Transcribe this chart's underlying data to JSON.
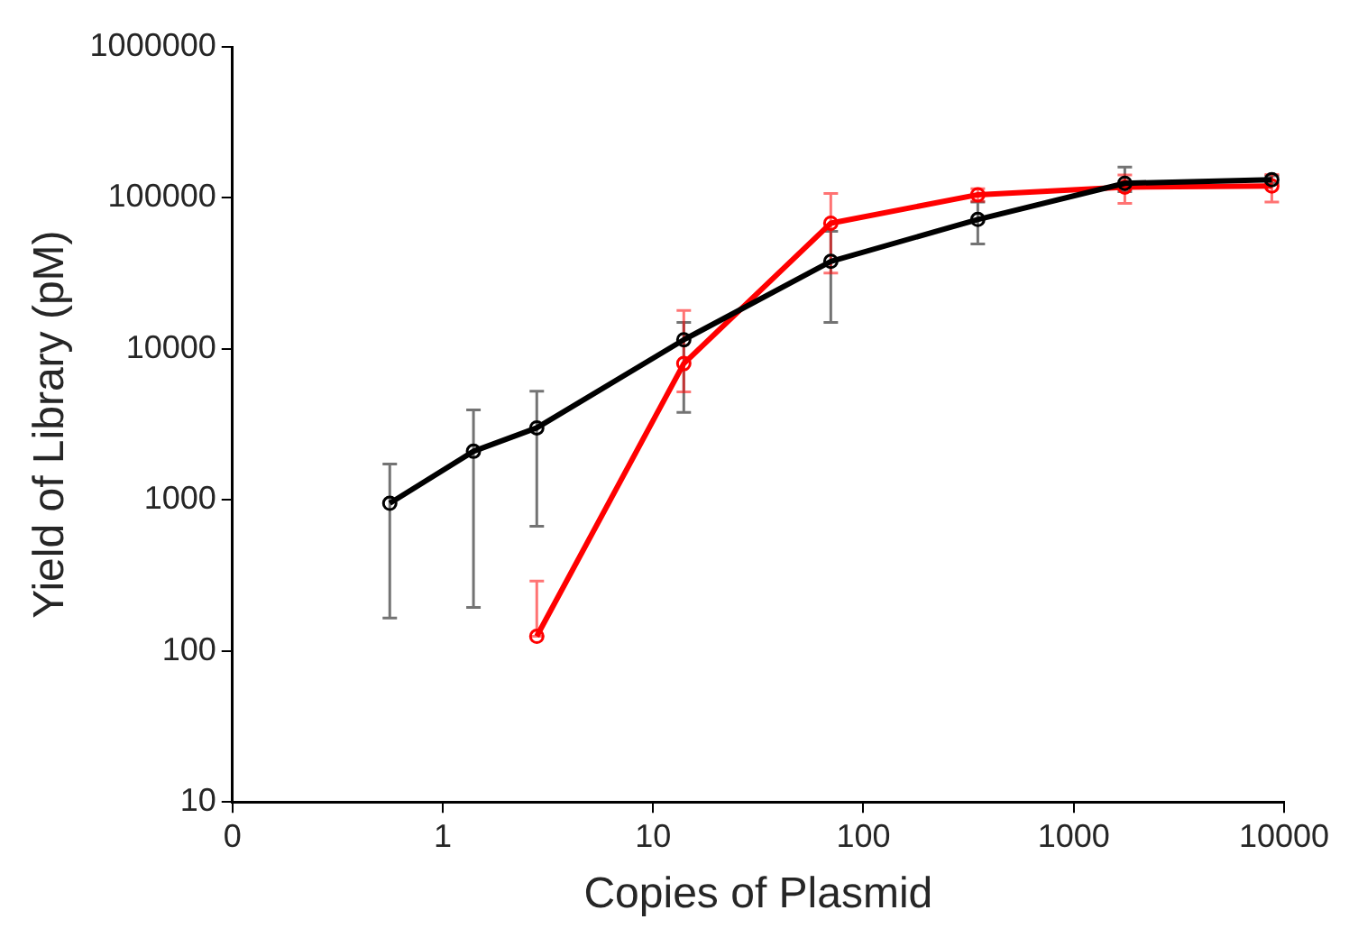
{
  "chart_data": {
    "type": "line",
    "xlabel": "Copies of Plasmid",
    "ylabel": "Yield of Library (pM)",
    "log": "xy",
    "grid": false,
    "legend": false,
    "marker": "circle",
    "line_style": "solid",
    "xlim": [
      0.1,
      10000
    ],
    "xticks": [
      {
        "value": 0.1,
        "label": "0"
      },
      1,
      10,
      100,
      1000,
      10000
    ],
    "ylim": [
      10,
      1000000
    ],
    "yticks": [
      10,
      100,
      1000,
      10000,
      100000,
      1000000
    ],
    "series": [
      {
        "color": "#000000",
        "x": [
          0.56,
          1.4,
          2.8,
          14,
          70,
          350,
          1750,
          8750
        ],
        "values": [
          950,
          2100,
          3000,
          11500,
          38000,
          72000,
          125000,
          132000
        ],
        "errors": [
          [
            165,
            1730
          ],
          [
            194,
            3950
          ],
          [
            670,
            5250
          ],
          [
            3800,
            15000
          ],
          [
            15000,
            60000
          ],
          [
            49500,
            94000
          ],
          [
            110000,
            160000
          ],
          [
            125000,
            140000
          ]
        ]
      },
      {
        "color": "#ff0000",
        "x": [
          2.8,
          14,
          70,
          350,
          1750,
          8750
        ],
        "values": [
          125,
          8000,
          68000,
          105000,
          118000,
          120000
        ],
        "errors": [
          [
            125,
            290
          ],
          [
            5200,
            18000
          ],
          [
            31800,
            107000
          ],
          [
            95000,
            115000
          ],
          [
            92000,
            142000
          ],
          [
            94000,
            143000
          ]
        ]
      }
    ]
  }
}
